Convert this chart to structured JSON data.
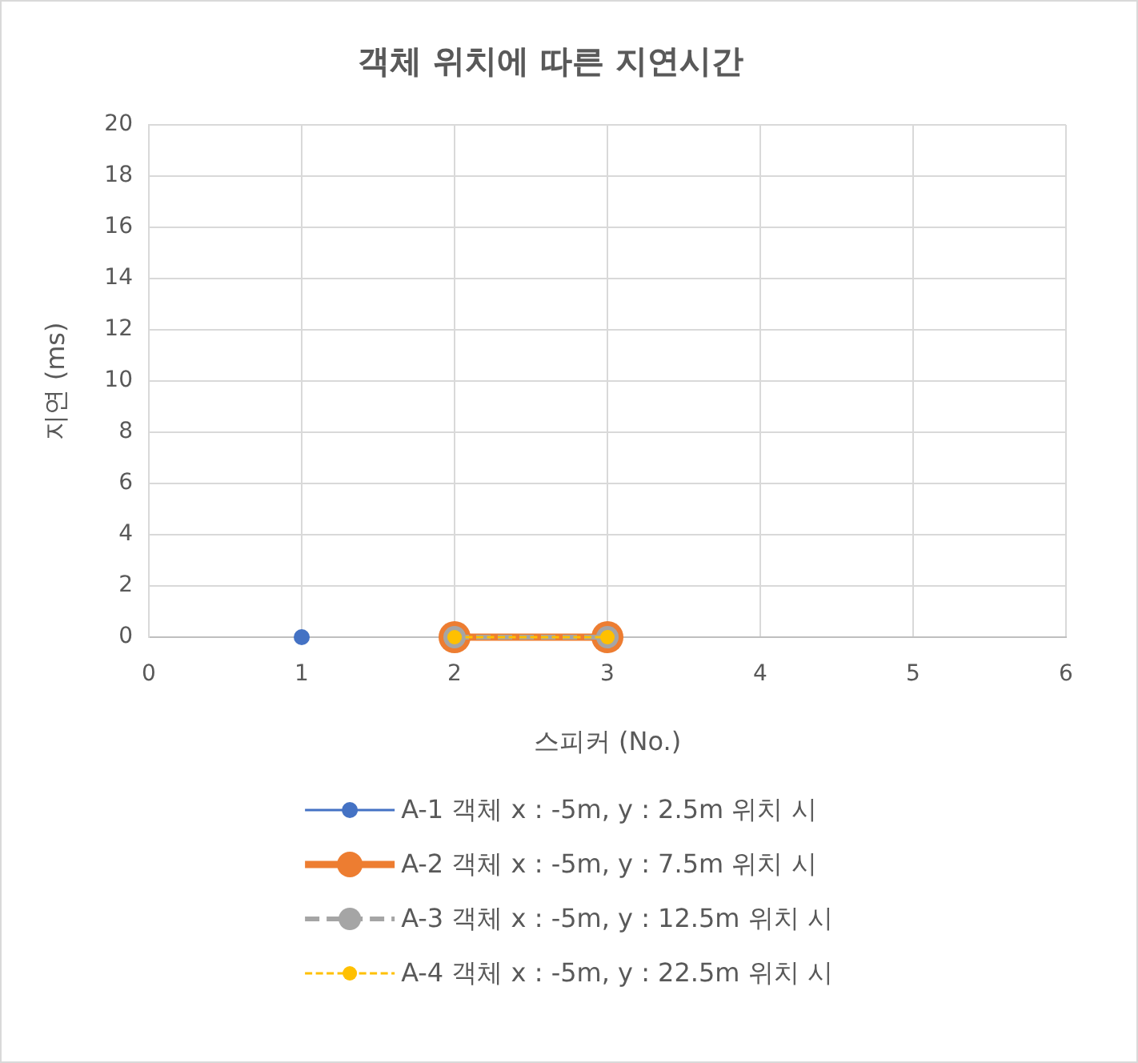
{
  "chart_data": {
    "type": "line",
    "title": "객체 위치에 따른 지연시간",
    "xlabel": "스피커 (No.)",
    "ylabel": "지연 (ms)",
    "series": [
      {
        "name": "A-1 객체 x : -5m, y : 2.5m 위치 시",
        "color": "#4472c4",
        "x": [
          1
        ],
        "values": [
          0
        ]
      },
      {
        "name": "A-2 객체 x : -5m, y : 7.5m 위치 시",
        "color": "#ed7d31",
        "x": [
          2,
          3
        ],
        "values": [
          0,
          0
        ]
      },
      {
        "name": "A-3 객체 x : -5m, y : 12.5m 위치 시",
        "color": "#a5a5a5",
        "x": [
          2,
          3
        ],
        "values": [
          0,
          0
        ],
        "line_style": "dashed"
      },
      {
        "name": "A-4 객체 x : -5m, y : 22.5m 위치 시",
        "color": "#ffc000",
        "x": [
          2,
          3
        ],
        "values": [
          0,
          0
        ],
        "line_style": "dashed"
      }
    ],
    "xlim": [
      0,
      6
    ],
    "xticks": [
      0,
      1,
      2,
      3,
      4,
      5,
      6
    ],
    "ylim": [
      0,
      20
    ],
    "yticks": [
      0,
      2,
      4,
      6,
      8,
      10,
      12,
      14,
      16,
      18,
      20
    ],
    "grid": true,
    "legend": "bottom",
    "marker": "circle"
  }
}
